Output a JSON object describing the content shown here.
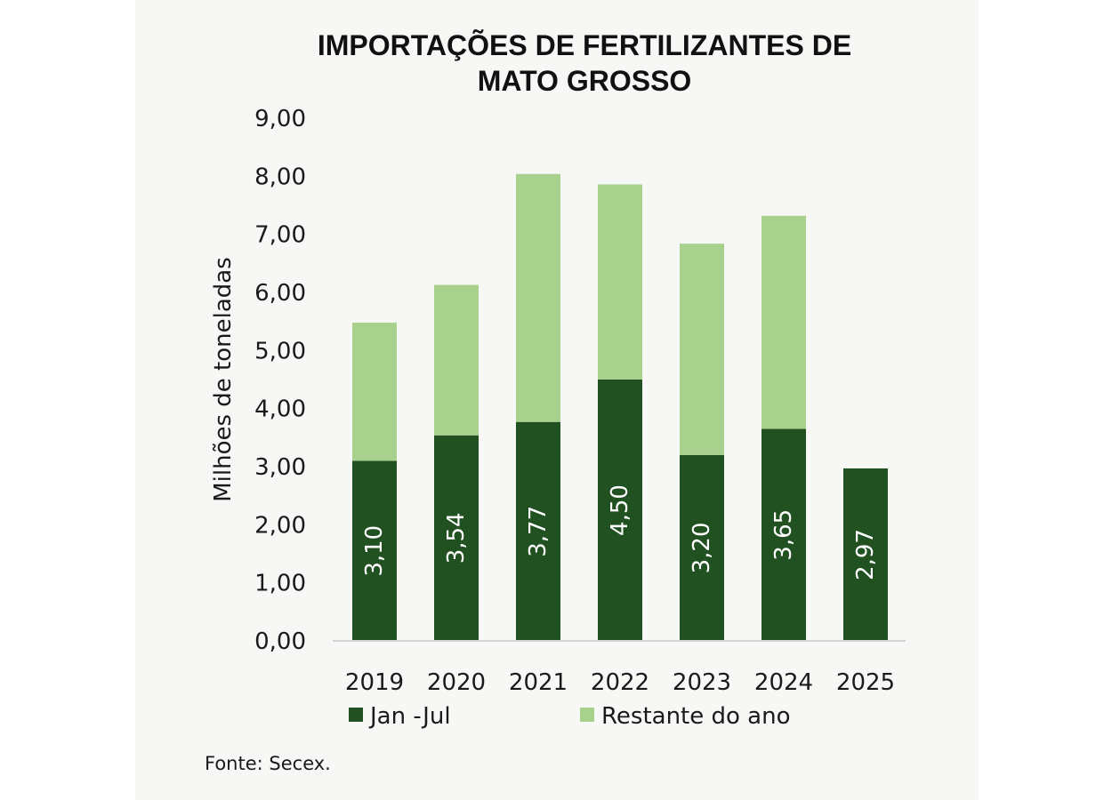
{
  "chart_data": {
    "type": "bar",
    "stacked": true,
    "title_lines": [
      "IMPORTAÇÕES DE FERTILIZANTES DE",
      "MATO GROSSO"
    ],
    "ylabel": "Milhões de toneladas",
    "xlabel": "",
    "ylim": [
      0,
      9
    ],
    "yticks": [
      "0,00",
      "1,00",
      "2,00",
      "3,00",
      "4,00",
      "5,00",
      "6,00",
      "7,00",
      "8,00",
      "9,00"
    ],
    "categories": [
      "2019",
      "2020",
      "2021",
      "2022",
      "2023",
      "2024",
      "2025"
    ],
    "series": [
      {
        "name": "Jan -Jul",
        "color": "#215121",
        "values": [
          3.1,
          3.54,
          3.77,
          4.5,
          3.2,
          3.65,
          2.97
        ],
        "labels": [
          "3,10",
          "3,54",
          "3,77",
          "4,50",
          "3,20",
          "3,65",
          "2,97"
        ]
      },
      {
        "name": "Restante do ano",
        "color": "#a9d18e",
        "values": [
          2.38,
          2.59,
          4.27,
          3.36,
          3.64,
          3.67,
          0
        ]
      }
    ],
    "grid": false,
    "legend_position": "bottom"
  },
  "source": "Fonte: Secex."
}
